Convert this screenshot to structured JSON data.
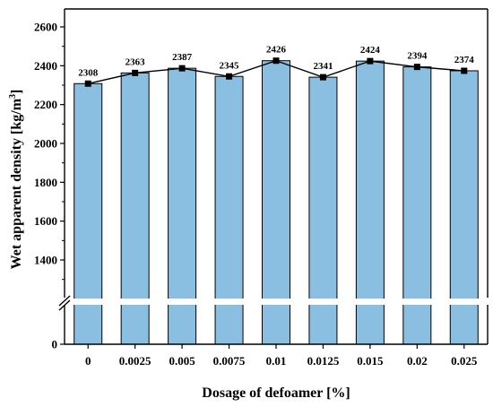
{
  "chart_data": {
    "type": "bar",
    "categories": [
      "0",
      "0.0025",
      "0.005",
      "0.0075",
      "0.01",
      "0.0125",
      "0.015",
      "0.02",
      "0.025"
    ],
    "values": [
      2308,
      2363,
      2387,
      2345,
      2426,
      2341,
      2424,
      2394,
      2374
    ],
    "data_labels": [
      "2308",
      "2363",
      "2387",
      "2345",
      "2426",
      "2341",
      "2424",
      "2394",
      "2374"
    ],
    "overlay": "line with square markers through bar tops",
    "xlabel": "Dosage of defoamer [%]",
    "ylabel": "Wet apparent density [kg/m³]",
    "ylabel_main": "Wet apparent density [kg/m",
    "ylabel_sup": "3",
    "ylabel_end": "]",
    "y_axis_break": true,
    "ylim_lower_segment": [
      0,
      1200
    ],
    "ylim_upper_segment": [
      1200,
      2600
    ],
    "yticks": [
      {
        "value": 0,
        "label": "0"
      },
      {
        "value": 1400,
        "label": "1400"
      },
      {
        "value": 1600,
        "label": "1600"
      },
      {
        "value": 1800,
        "label": "1800"
      },
      {
        "value": 2000,
        "label": "2000"
      },
      {
        "value": 2200,
        "label": "2200"
      },
      {
        "value": 2400,
        "label": "2400"
      },
      {
        "value": 2600,
        "label": "2600"
      }
    ],
    "grid": false,
    "legend": "none",
    "colors": {
      "bar_fill": "#8bbfe2",
      "bar_edge": "#000000",
      "line": "#000000",
      "marker": "#000000"
    }
  }
}
